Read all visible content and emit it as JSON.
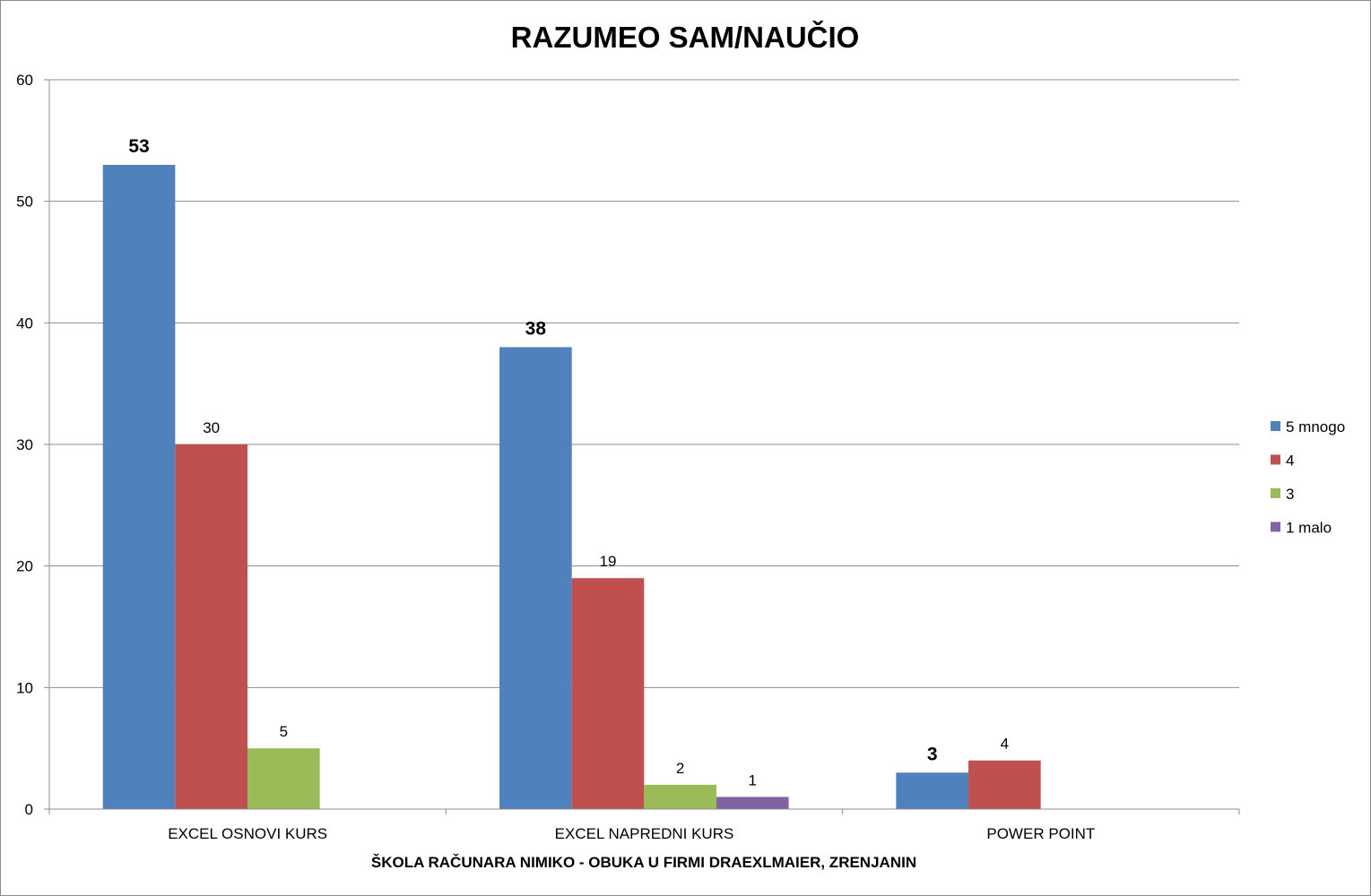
{
  "chart_data": {
    "type": "bar",
    "title": "RAZUMEO SAM/NAUČIO",
    "xlabel": "ŠKOLA RAČUNARA NIMIKO - OBUKA U FIRMI DRAEXLMAIER, ZRENJANIN",
    "ylabel": "",
    "ylim": [
      0,
      60
    ],
    "yticks": [
      0,
      10,
      20,
      30,
      40,
      50,
      60
    ],
    "grid": true,
    "legend_position": "right",
    "categories": [
      "EXCEL OSNOVI KURS",
      "EXCEL NAPREDNI KURS",
      "POWER POINT"
    ],
    "series": [
      {
        "name": "5 mnogo",
        "color": "#4f81bd",
        "values": [
          53,
          38,
          3
        ],
        "label_bold": true
      },
      {
        "name": "4",
        "color": "#c0504d",
        "values": [
          30,
          19,
          4
        ],
        "label_bold": false
      },
      {
        "name": "3",
        "color": "#9bbb59",
        "values": [
          5,
          2,
          null
        ],
        "label_bold": false
      },
      {
        "name": "1 malo",
        "color": "#8064a2",
        "values": [
          null,
          1,
          null
        ],
        "label_bold": false
      }
    ]
  }
}
